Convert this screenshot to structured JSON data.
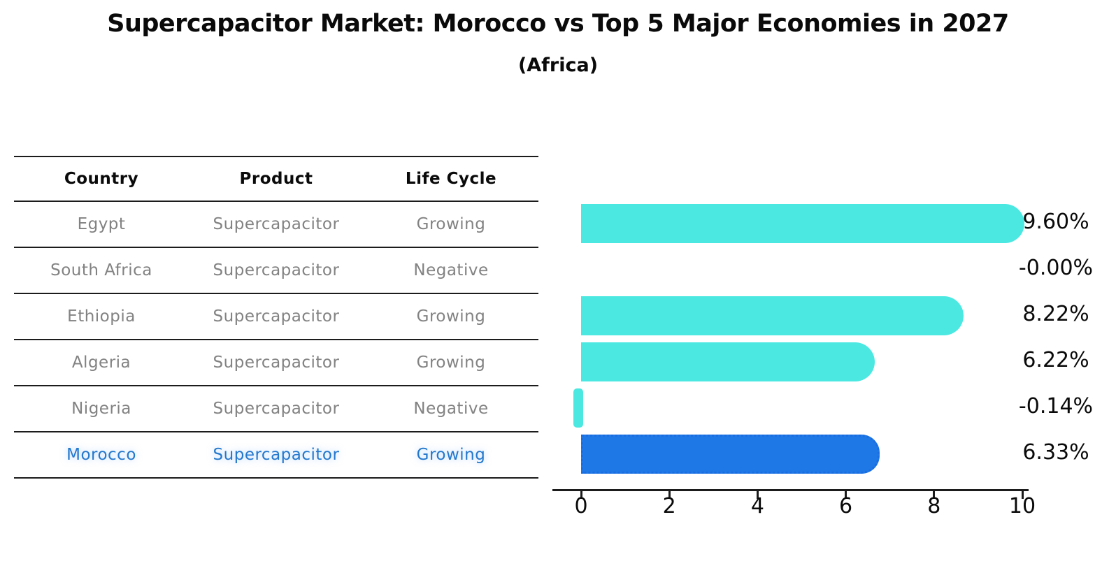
{
  "title": "Supercapacitor Market: Morocco vs Top 5 Major Economies in 2027",
  "subtitle": "(Africa)",
  "table": {
    "headers": [
      "Country",
      "Product",
      "Life Cycle"
    ],
    "rows": [
      {
        "country": "Egypt",
        "product": "Supercapacitor",
        "life_cycle": "Growing",
        "highlight": false
      },
      {
        "country": "South Africa",
        "product": "Supercapacitor",
        "life_cycle": "Negative",
        "highlight": false
      },
      {
        "country": "Ethiopia",
        "product": "Supercapacitor",
        "life_cycle": "Growing",
        "highlight": false
      },
      {
        "country": "Algeria",
        "product": "Supercapacitor",
        "life_cycle": "Growing",
        "highlight": false
      },
      {
        "country": "Nigeria",
        "product": "Supercapacitor",
        "life_cycle": "Negative",
        "highlight": false
      },
      {
        "country": "Morocco",
        "product": "Supercapacitor",
        "life_cycle": "Growing",
        "highlight": true
      }
    ]
  },
  "chart_data": {
    "type": "bar",
    "orientation": "horizontal",
    "categories": [
      "Egypt",
      "South Africa",
      "Ethiopia",
      "Algeria",
      "Nigeria",
      "Morocco"
    ],
    "values": [
      9.6,
      -0.0,
      8.22,
      6.22,
      -0.14,
      6.33
    ],
    "value_labels": [
      "9.60%",
      "-0.00%",
      "8.22%",
      "6.22%",
      "-0.14%",
      "6.33%"
    ],
    "xlim": [
      0,
      10
    ],
    "xticks": [
      0,
      2,
      4,
      6,
      8,
      10
    ],
    "grid": false,
    "legend": false,
    "bar_color": "#4be8e2",
    "highlight_bar_color": "#1e78e6",
    "highlight_border_color": "#1a6de0",
    "highlight_text_color": "#2478cc",
    "highlight_index": 5
  }
}
